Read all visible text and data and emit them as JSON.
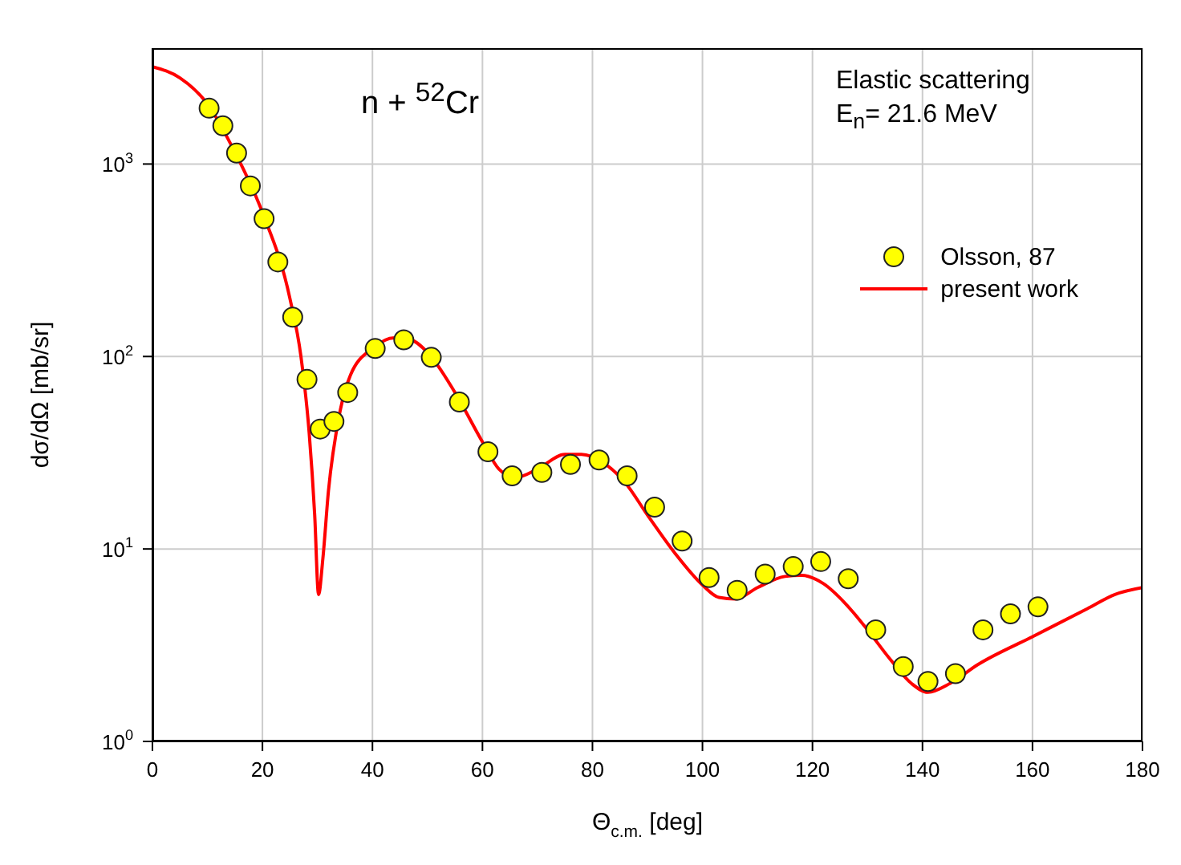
{
  "chart_data": {
    "type": "scatter",
    "title": "n + $^{52}$Cr",
    "xlabel": "Θ$_{c.m.}$ [deg]",
    "ylabel": "dσ/dΩ [mb/sr]",
    "annotations": [
      "Elastic scattering",
      "E$_{n}$= 21.6 MeV"
    ],
    "log": "y",
    "grid": true,
    "legend": "top right",
    "xlim": [
      0,
      180
    ],
    "xticks": [
      0,
      20,
      40,
      60,
      80,
      100,
      120,
      140,
      160,
      180
    ],
    "ylim": [
      1,
      4000
    ],
    "yticks": [
      {
        "value": 1,
        "label": "10$^{0}$"
      },
      {
        "value": 10,
        "label": "10$^{1}$"
      },
      {
        "value": 100,
        "label": "10$^{2}$"
      },
      {
        "value": 1000,
        "label": "10$^{3}$"
      }
    ],
    "series": [
      {
        "name": "Olsson, 87",
        "marker": "circle",
        "color": "#ffff00",
        "x": [
          10.3,
          12.8,
          15.3,
          17.8,
          20.3,
          22.8,
          25.5,
          28.1,
          30.5,
          33,
          35.5,
          40.5,
          45.7,
          50.7,
          55.8,
          61,
          65.4,
          70.8,
          76,
          81.2,
          86.3,
          91.3,
          96.3,
          101.2,
          106.3,
          111.4,
          116.5,
          121.5,
          126.5,
          131.5,
          136.5,
          141,
          146,
          151,
          156,
          161
        ],
        "values": [
          1950,
          1580,
          1140,
          770,
          520,
          310,
          160,
          76,
          42,
          46,
          65,
          110,
          122,
          99,
          58,
          32,
          24,
          25,
          27.5,
          29,
          24,
          16.5,
          11,
          7.1,
          6.1,
          7.4,
          8.1,
          8.6,
          7.0,
          3.8,
          2.45,
          2.05,
          2.25,
          3.8,
          4.6,
          5.0
        ]
      },
      {
        "name": "present work",
        "type": "line",
        "marker": "none",
        "line_style": "solid",
        "color": "#ff0000",
        "x": [
          0,
          5,
          10,
          15,
          20,
          25,
          27,
          28.5,
          29.5,
          30.2,
          31,
          32,
          34,
          36,
          40,
          44,
          47,
          50,
          55,
          60,
          63,
          66,
          70,
          75,
          78,
          82,
          86,
          90,
          95,
          100,
          103,
          106,
          110,
          115,
          118,
          122,
          126,
          130,
          134,
          138,
          141,
          145,
          150,
          160,
          170,
          175,
          180
        ],
        "values": [
          3200,
          2800,
          2050,
          1150,
          560,
          200,
          100,
          40,
          15,
          5.8,
          9,
          20,
          50,
          80,
          110,
          125,
          122,
          105,
          65,
          36,
          26,
          23.5,
          26,
          31,
          31,
          28,
          22,
          15,
          9.5,
          6.5,
          5.6,
          5.5,
          6.3,
          7.2,
          7.3,
          6.6,
          5.2,
          3.8,
          2.7,
          2.0,
          1.8,
          2.0,
          2.5,
          3.5,
          4.9,
          5.8,
          6.3
        ]
      }
    ]
  }
}
